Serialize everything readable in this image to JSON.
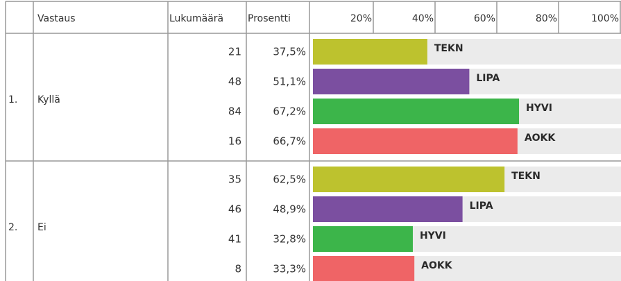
{
  "header": {
    "columns": [
      "Vastaus",
      "Lukumäärä",
      "Prosentti"
    ],
    "ticks": [
      {
        "value": 20,
        "label": "20%"
      },
      {
        "value": 40,
        "label": "40%"
      },
      {
        "value": 60,
        "label": "60%"
      },
      {
        "value": 80,
        "label": "80%"
      },
      {
        "value": 100,
        "label": "100%"
      }
    ],
    "scale": [
      0,
      100
    ]
  },
  "groups": [
    {
      "number": "1.",
      "label": "Kyllä",
      "rows": [
        {
          "count": 21,
          "percent": 37.5,
          "percent_label": "37,5%",
          "group": "TEKN",
          "color": "#bdc22e"
        },
        {
          "count": 48,
          "percent": 51.1,
          "percent_label": "51,1%",
          "group": "LIPA",
          "color": "#7b4fa0"
        },
        {
          "count": 84,
          "percent": 67.2,
          "percent_label": "67,2%",
          "group": "HYVI",
          "color": "#3cb54a"
        },
        {
          "count": 16,
          "percent": 66.7,
          "percent_label": "66,7%",
          "group": "AOKK",
          "color": "#ef6466"
        }
      ]
    },
    {
      "number": "2.",
      "label": "Ei",
      "rows": [
        {
          "count": 35,
          "percent": 62.5,
          "percent_label": "62,5%",
          "group": "TEKN",
          "color": "#bdc22e"
        },
        {
          "count": 46,
          "percent": 48.9,
          "percent_label": "48,9%",
          "group": "LIPA",
          "color": "#7b4fa0"
        },
        {
          "count": 41,
          "percent": 32.8,
          "percent_label": "32,8%",
          "group": "HYVI",
          "color": "#3cb54a"
        },
        {
          "count": 8,
          "percent": 33.3,
          "percent_label": "33,3%",
          "group": "AOKK",
          "color": "#ef6466"
        }
      ]
    }
  ]
}
